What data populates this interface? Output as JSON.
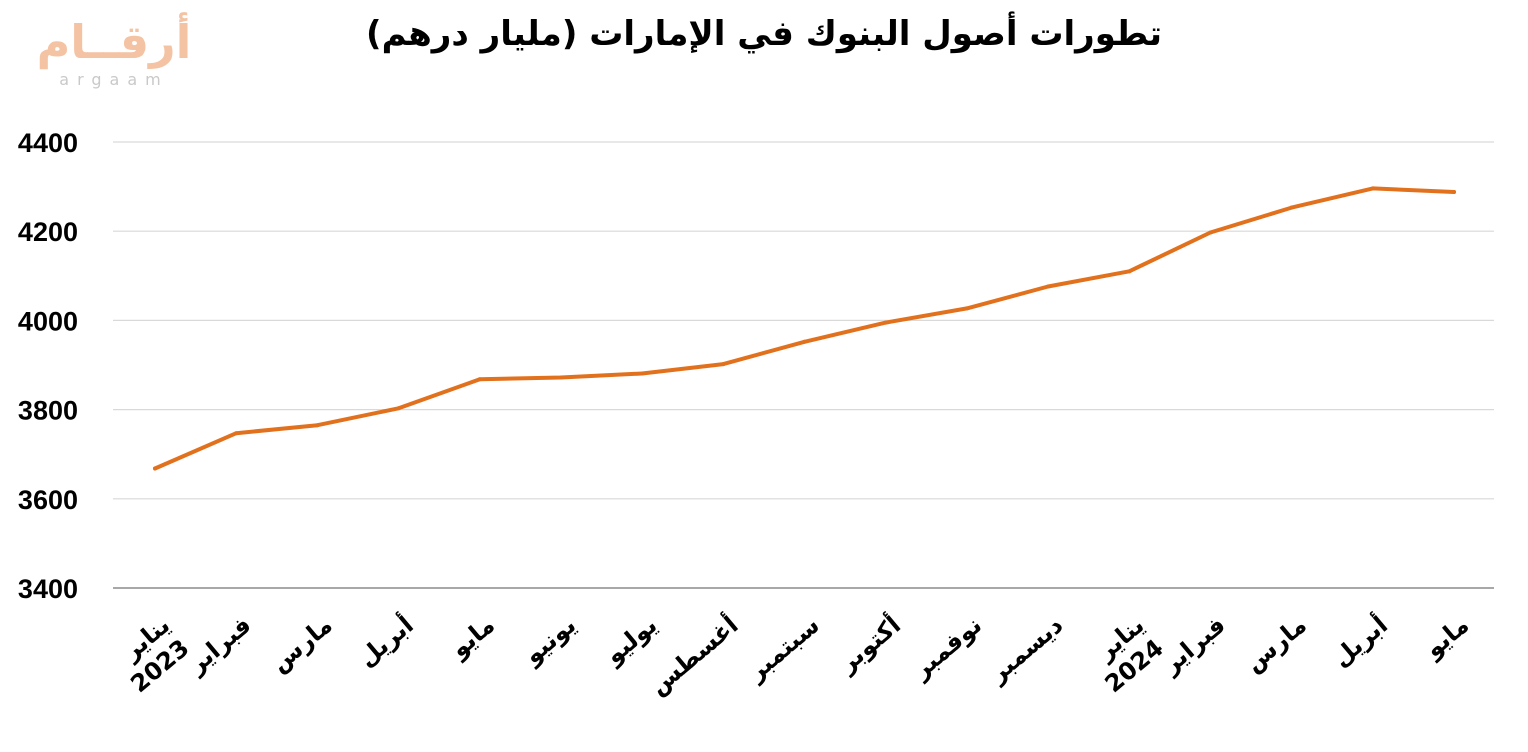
{
  "logo": {
    "arabic": "أرقــام",
    "latin": "argaam"
  },
  "chart_data": {
    "type": "line",
    "title": "تطورات أصول البنوك في الإمارات (مليار درهم)",
    "xlabel": "",
    "ylabel": "",
    "ylim": [
      3400,
      4400
    ],
    "yticks": [
      "4400",
      "4200",
      "4000",
      "3800",
      "3600",
      "3400"
    ],
    "grid": true,
    "legend": "none",
    "line_color": "#e2711d",
    "categories": [
      "يناير 2023",
      "فبراير",
      "مارس",
      "أبريل",
      "مايو",
      "يونيو",
      "يوليو",
      "أغسطس",
      "سبتمبر",
      "أكتوبر",
      "نوفمبر",
      "ديسمبر",
      "يناير 2024",
      "فبراير",
      "مارس",
      "أبريل",
      "مايو"
    ],
    "category_lines": [
      [
        "يناير",
        "2023"
      ],
      [
        "فبراير"
      ],
      [
        "مارس"
      ],
      [
        "أبريل"
      ],
      [
        "مايو"
      ],
      [
        "يونيو"
      ],
      [
        "يوليو"
      ],
      [
        "أغسطس"
      ],
      [
        "سبتمبر"
      ],
      [
        "أكتوبر"
      ],
      [
        "نوفمبر"
      ],
      [
        "ديسمبر"
      ],
      [
        "يناير",
        "2024"
      ],
      [
        "فبراير"
      ],
      [
        "مارس"
      ],
      [
        "أبريل"
      ],
      [
        "مايو"
      ]
    ],
    "series": [
      {
        "values": [
          3668,
          3747,
          3765,
          3803,
          3868,
          3872,
          3881,
          3902,
          3952,
          3995,
          4027,
          4076,
          4110,
          4197,
          4253,
          4296,
          4288
        ]
      }
    ]
  }
}
